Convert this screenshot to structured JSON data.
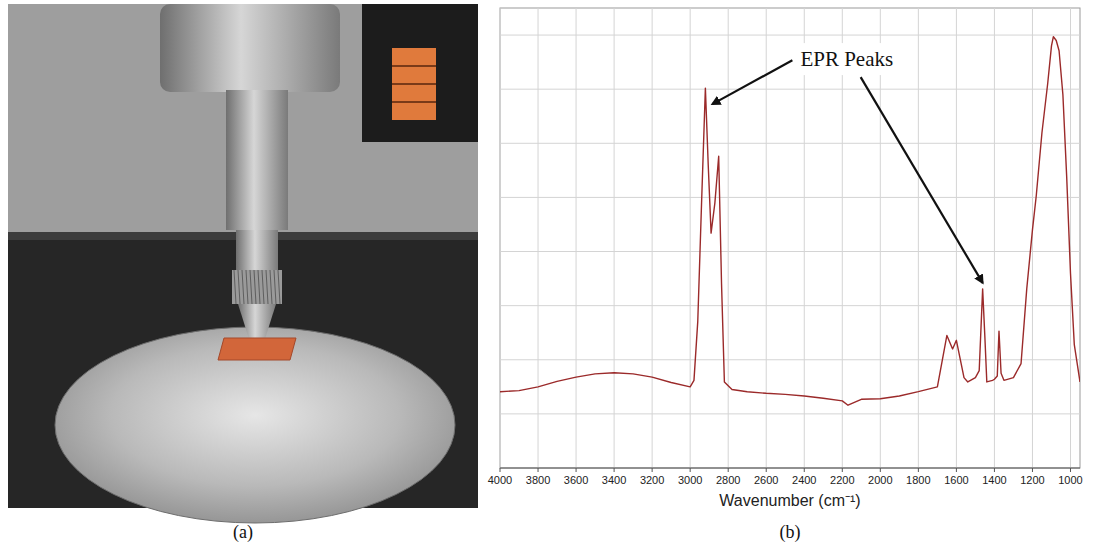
{
  "panel_labels": [
    "(a)",
    "(b)"
  ],
  "chart_data": {
    "type": "line",
    "x_label": "Wavenumber (cm⁻¹)",
    "x": [
      4000,
      3900,
      3800,
      3700,
      3600,
      3500,
      3400,
      3300,
      3200,
      3100,
      3000,
      2980,
      2960,
      2940,
      2920,
      2905,
      2890,
      2870,
      2850,
      2835,
      2820,
      2780,
      2700,
      2600,
      2500,
      2400,
      2300,
      2200,
      2170,
      2100,
      2000,
      1900,
      1800,
      1700,
      1650,
      1620,
      1600,
      1560,
      1540,
      1500,
      1480,
      1462,
      1450,
      1440,
      1410,
      1400,
      1385,
      1376,
      1365,
      1350,
      1300,
      1260,
      1230,
      1200,
      1180,
      1150,
      1120,
      1100,
      1090,
      1075,
      1060,
      1040,
      1020,
      1000,
      980,
      950
    ],
    "values": [
      1.41,
      1.43,
      1.5,
      1.6,
      1.68,
      1.74,
      1.76,
      1.74,
      1.68,
      1.58,
      1.5,
      1.62,
      2.71,
      4.9,
      7.02,
      5.6,
      4.34,
      4.9,
      5.76,
      3.4,
      1.59,
      1.45,
      1.41,
      1.38,
      1.36,
      1.33,
      1.29,
      1.24,
      1.16,
      1.27,
      1.28,
      1.33,
      1.41,
      1.5,
      2.45,
      2.2,
      2.36,
      1.67,
      1.59,
      1.67,
      1.8,
      3.31,
      2.4,
      1.59,
      1.62,
      1.64,
      1.7,
      2.53,
      1.75,
      1.62,
      1.67,
      1.93,
      3.31,
      4.4,
      5.03,
      6.2,
      7.1,
      7.8,
      7.97,
      7.9,
      7.71,
      6.9,
      5.38,
      3.6,
      2.28,
      1.59
    ],
    "color": "#9b2a2a",
    "xlim": [
      4000,
      950
    ],
    "xticks": [
      4000,
      3800,
      3600,
      3400,
      3200,
      3000,
      2800,
      2600,
      2400,
      2200,
      2000,
      1800,
      1600,
      1400,
      1200,
      1000
    ],
    "ylim": [
      0,
      8.5
    ],
    "yticks": [
      1,
      2,
      3,
      4,
      5,
      6,
      7,
      8
    ],
    "grid": true,
    "tick_labels": "x",
    "annotations": [
      {
        "text": "EPR Peaks",
        "points": [
          {
            "x": 2920,
            "y": 7.02
          },
          {
            "x": 1462,
            "y": 3.31
          }
        ]
      }
    ]
  }
}
